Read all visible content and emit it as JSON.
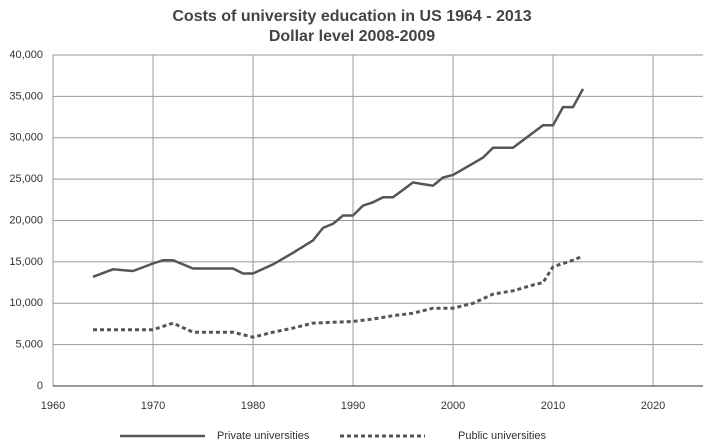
{
  "chart_data": {
    "type": "line",
    "title": "Costs of university education in US 1964 - 2013",
    "subtitle": "Dollar level 2008-2009",
    "xlim": [
      1960,
      2025
    ],
    "xticks": [
      1960,
      1970,
      1980,
      1990,
      2000,
      2010,
      2020
    ],
    "ylim": [
      0,
      40000
    ],
    "yticks": [
      0,
      {
        "value": 5000,
        "label": "5,000"
      },
      {
        "value": 10000,
        "label": "10,000"
      },
      {
        "value": 15000,
        "label": "15,000"
      },
      {
        "value": 20000,
        "label": "20,000"
      },
      {
        "value": 25000,
        "label": "25,000"
      },
      {
        "value": 30000,
        "label": "30,000"
      },
      {
        "value": 35000,
        "label": "35,000"
      },
      {
        "value": 40000,
        "label": "40,000"
      }
    ],
    "grid": true,
    "legend": "bottom",
    "series": [
      {
        "name": "Private universities",
        "color": "#555555",
        "dash": "solid",
        "x": [
          1964,
          1966,
          1968,
          1970,
          1971,
          1972,
          1974,
          1976,
          1978,
          1979,
          1980,
          1982,
          1984,
          1986,
          1987,
          1988,
          1989,
          1990,
          1991,
          1992,
          1993,
          1994,
          1995,
          1996,
          1997,
          1998,
          1999,
          2000,
          2001,
          2002,
          2003,
          2004,
          2005,
          2006,
          2007,
          2008,
          2009,
          2010,
          2011,
          2012,
          2013
        ],
        "values": [
          13200,
          14100,
          13900,
          14800,
          15200,
          15200,
          14200,
          14200,
          14200,
          13600,
          13600,
          14700,
          16100,
          17600,
          19100,
          19600,
          20600,
          20600,
          21800,
          22200,
          22800,
          22800,
          23700,
          24600,
          24400,
          24200,
          25200,
          25500,
          26200,
          26900,
          27600,
          28800,
          28800,
          28800,
          29700,
          30600,
          31500,
          31500,
          33700,
          33700,
          35900
        ]
      },
      {
        "name": "Public universities",
        "color": "#555555",
        "dash": "dashed",
        "x": [
          1964,
          1970,
          1972,
          1974,
          1978,
          1980,
          1982,
          1984,
          1986,
          1988,
          1990,
          1992,
          1994,
          1996,
          1998,
          2000,
          2002,
          2004,
          2006,
          2008,
          2009,
          2010,
          2012,
          2013
        ],
        "values": [
          6800,
          6800,
          7600,
          6500,
          6500,
          5900,
          6500,
          7000,
          7600,
          7700,
          7800,
          8100,
          8500,
          8800,
          9400,
          9400,
          10000,
          11100,
          11500,
          12200,
          12500,
          14400,
          15200,
          15700
        ]
      }
    ]
  }
}
